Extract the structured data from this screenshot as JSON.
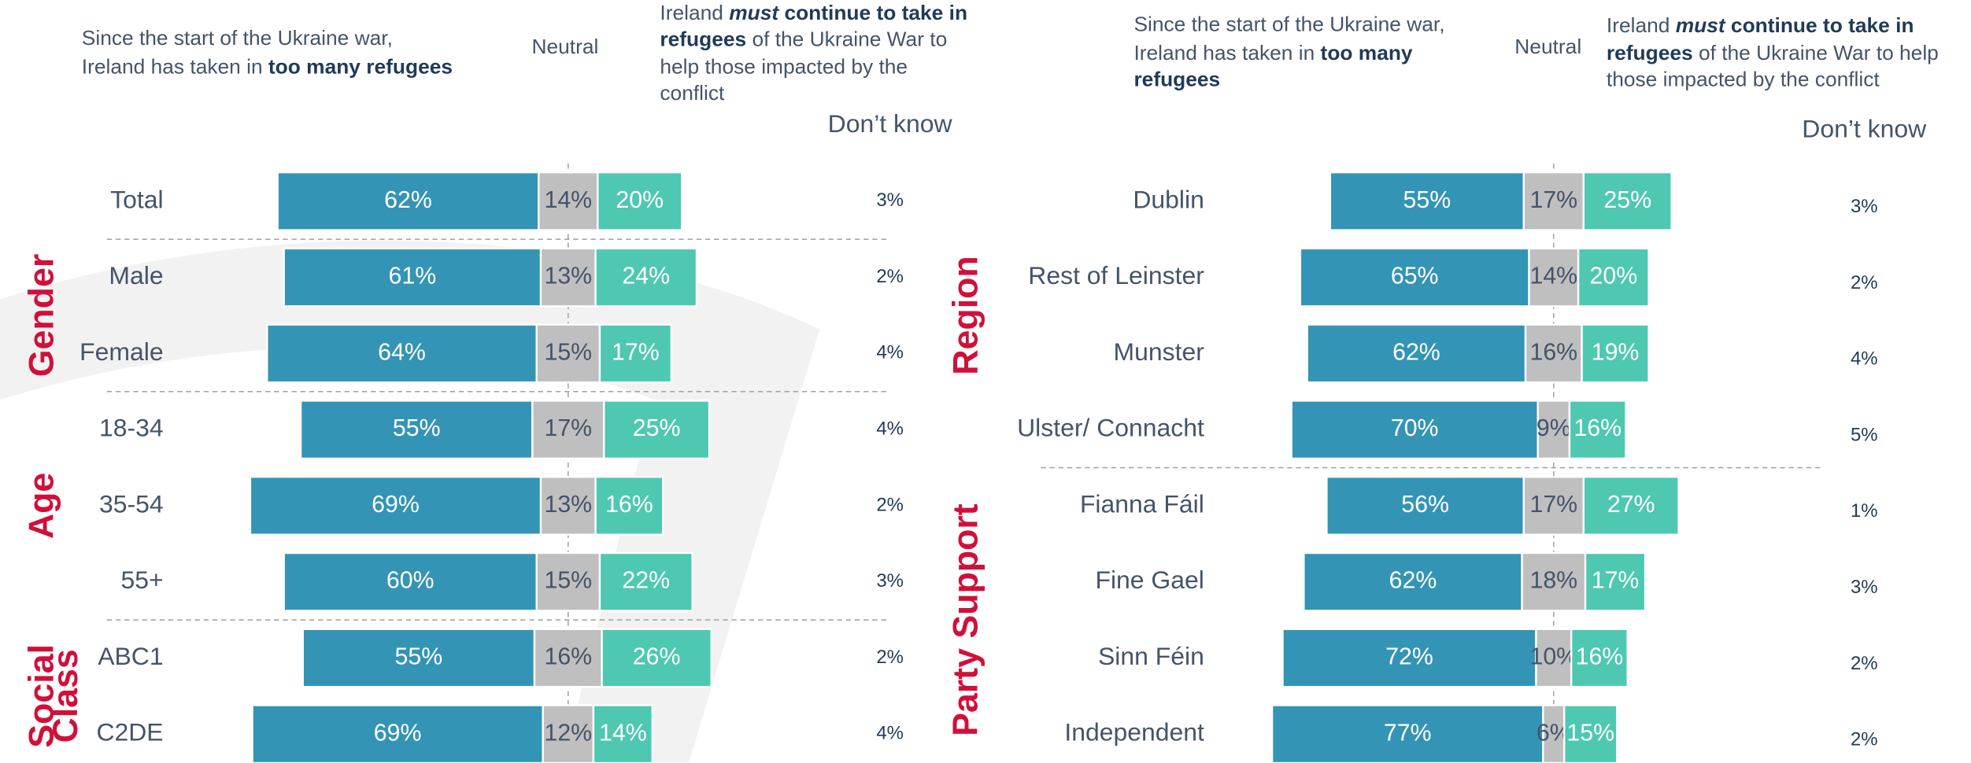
{
  "chart_data": [
    {
      "type": "diverging-bar",
      "groups": [
        {
          "categories": [
            "Total"
          ]
        },
        {
          "label": [
            "Gender"
          ],
          "categories": [
            "Male",
            "Female"
          ]
        },
        {
          "label": [
            "Age"
          ],
          "categories": [
            "18-34",
            "35-54",
            "55+"
          ]
        },
        {
          "label": [
            "Social",
            "Class"
          ],
          "categories": [
            "ABC1",
            "C2DE"
          ]
        }
      ],
      "series": [
        {
          "name": [
            [
              {
                "text": "Since the start of the Ukraine war,",
                "style": "normal"
              }
            ],
            [
              {
                "text": "Ireland has taken in ",
                "style": "normal"
              },
              {
                "text": "too many refugees",
                "style": "bold"
              }
            ]
          ],
          "color": "#3394b6",
          "values": [
            62,
            61,
            64,
            55,
            69,
            60,
            55,
            69
          ],
          "value_labels": [
            "62%",
            "61%",
            "64%",
            "55%",
            "69%",
            "60%",
            "55%",
            "69%"
          ]
        },
        {
          "name": [
            [
              {
                "text": "Neutral",
                "style": "normal"
              }
            ]
          ],
          "color": "#bfbfbf",
          "values": [
            14,
            13,
            15,
            17,
            13,
            15,
            16,
            12
          ],
          "value_labels": [
            "14%",
            "13%",
            "15%",
            "17%",
            "13%",
            "15%",
            "16%",
            "12%"
          ]
        },
        {
          "name": [
            [
              {
                "text": "Ireland ",
                "style": "normal"
              },
              {
                "text": "must",
                "style": "bold-italic"
              },
              {
                "text": " continue to take in",
                "style": "bold"
              }
            ],
            [
              {
                "text": "refugees",
                "style": "bold"
              },
              {
                "text": " of the Ukraine War to",
                "style": "normal"
              }
            ],
            [
              {
                "text": "help those impacted by the",
                "style": "normal"
              }
            ],
            [
              {
                "text": "conflict",
                "style": "normal"
              }
            ]
          ],
          "color": "#4ec8b1",
          "values": [
            20,
            24,
            17,
            25,
            16,
            22,
            26,
            14
          ],
          "value_labels": [
            "20%",
            "24%",
            "17%",
            "25%",
            "16%",
            "22%",
            "26%",
            "14%"
          ]
        },
        {
          "name": [
            [
              {
                "text": "Don’t know",
                "style": "normal"
              }
            ]
          ],
          "values": [
            3,
            2,
            4,
            4,
            2,
            3,
            2,
            4
          ],
          "value_labels": [
            "3%",
            "2%",
            "4%",
            "4%",
            "2%",
            "3%",
            "2%",
            "4%"
          ]
        }
      ]
    },
    {
      "type": "diverging-bar",
      "groups": [
        {
          "label": [
            "Region"
          ],
          "categories": [
            "Dublin",
            "Rest of Leinster",
            "Munster",
            "Ulster/ Connacht"
          ]
        },
        {
          "label": [
            "Party Support"
          ],
          "categories": [
            "Fianna Fáil",
            "Fine Gael",
            "Sinn Féin",
            "Independent"
          ]
        }
      ],
      "series": [
        {
          "name": [
            [
              {
                "text": "Since the start of the Ukraine war,",
                "style": "normal"
              }
            ],
            [
              {
                "text": "Ireland has taken in ",
                "style": "normal"
              },
              {
                "text": "too many",
                "style": "bold"
              }
            ],
            [
              {
                "text": "refugees",
                "style": "bold"
              }
            ]
          ],
          "color": "#3394b6",
          "values": [
            55,
            65,
            62,
            70,
            56,
            62,
            72,
            77
          ],
          "value_labels": [
            "55%",
            "65%",
            "62%",
            "70%",
            "56%",
            "62%",
            "72%",
            "77%"
          ]
        },
        {
          "name": [
            [
              {
                "text": "Neutral",
                "style": "normal"
              }
            ]
          ],
          "color": "#bfbfbf",
          "values": [
            17,
            14,
            16,
            9,
            17,
            18,
            10,
            6
          ],
          "value_labels": [
            "17%",
            "14%",
            "16%",
            "9%",
            "17%",
            "18%",
            "10%",
            "6%"
          ]
        },
        {
          "name": [
            [
              {
                "text": "Ireland ",
                "style": "normal"
              },
              {
                "text": "must",
                "style": "bold-italic"
              },
              {
                "text": " continue to take in",
                "style": "bold"
              }
            ],
            [
              {
                "text": "refugees",
                "style": "bold"
              },
              {
                "text": " of the Ukraine War to help",
                "style": "normal"
              }
            ],
            [
              {
                "text": "those impacted by the conflict",
                "style": "normal"
              }
            ]
          ],
          "color": "#4ec8b1",
          "values": [
            25,
            20,
            19,
            16,
            27,
            17,
            16,
            15
          ],
          "value_labels": [
            "25%",
            "20%",
            "19%",
            "16%",
            "27%",
            "17%",
            "16%",
            "15%"
          ]
        },
        {
          "name": [
            [
              {
                "text": "Don’t know",
                "style": "normal"
              }
            ]
          ],
          "values": [
            3,
            2,
            4,
            5,
            1,
            3,
            2,
            2
          ],
          "value_labels": [
            "3%",
            "2%",
            "4%",
            "5%",
            "1%",
            "3%",
            "2%",
            "2%"
          ]
        }
      ]
    }
  ]
}
